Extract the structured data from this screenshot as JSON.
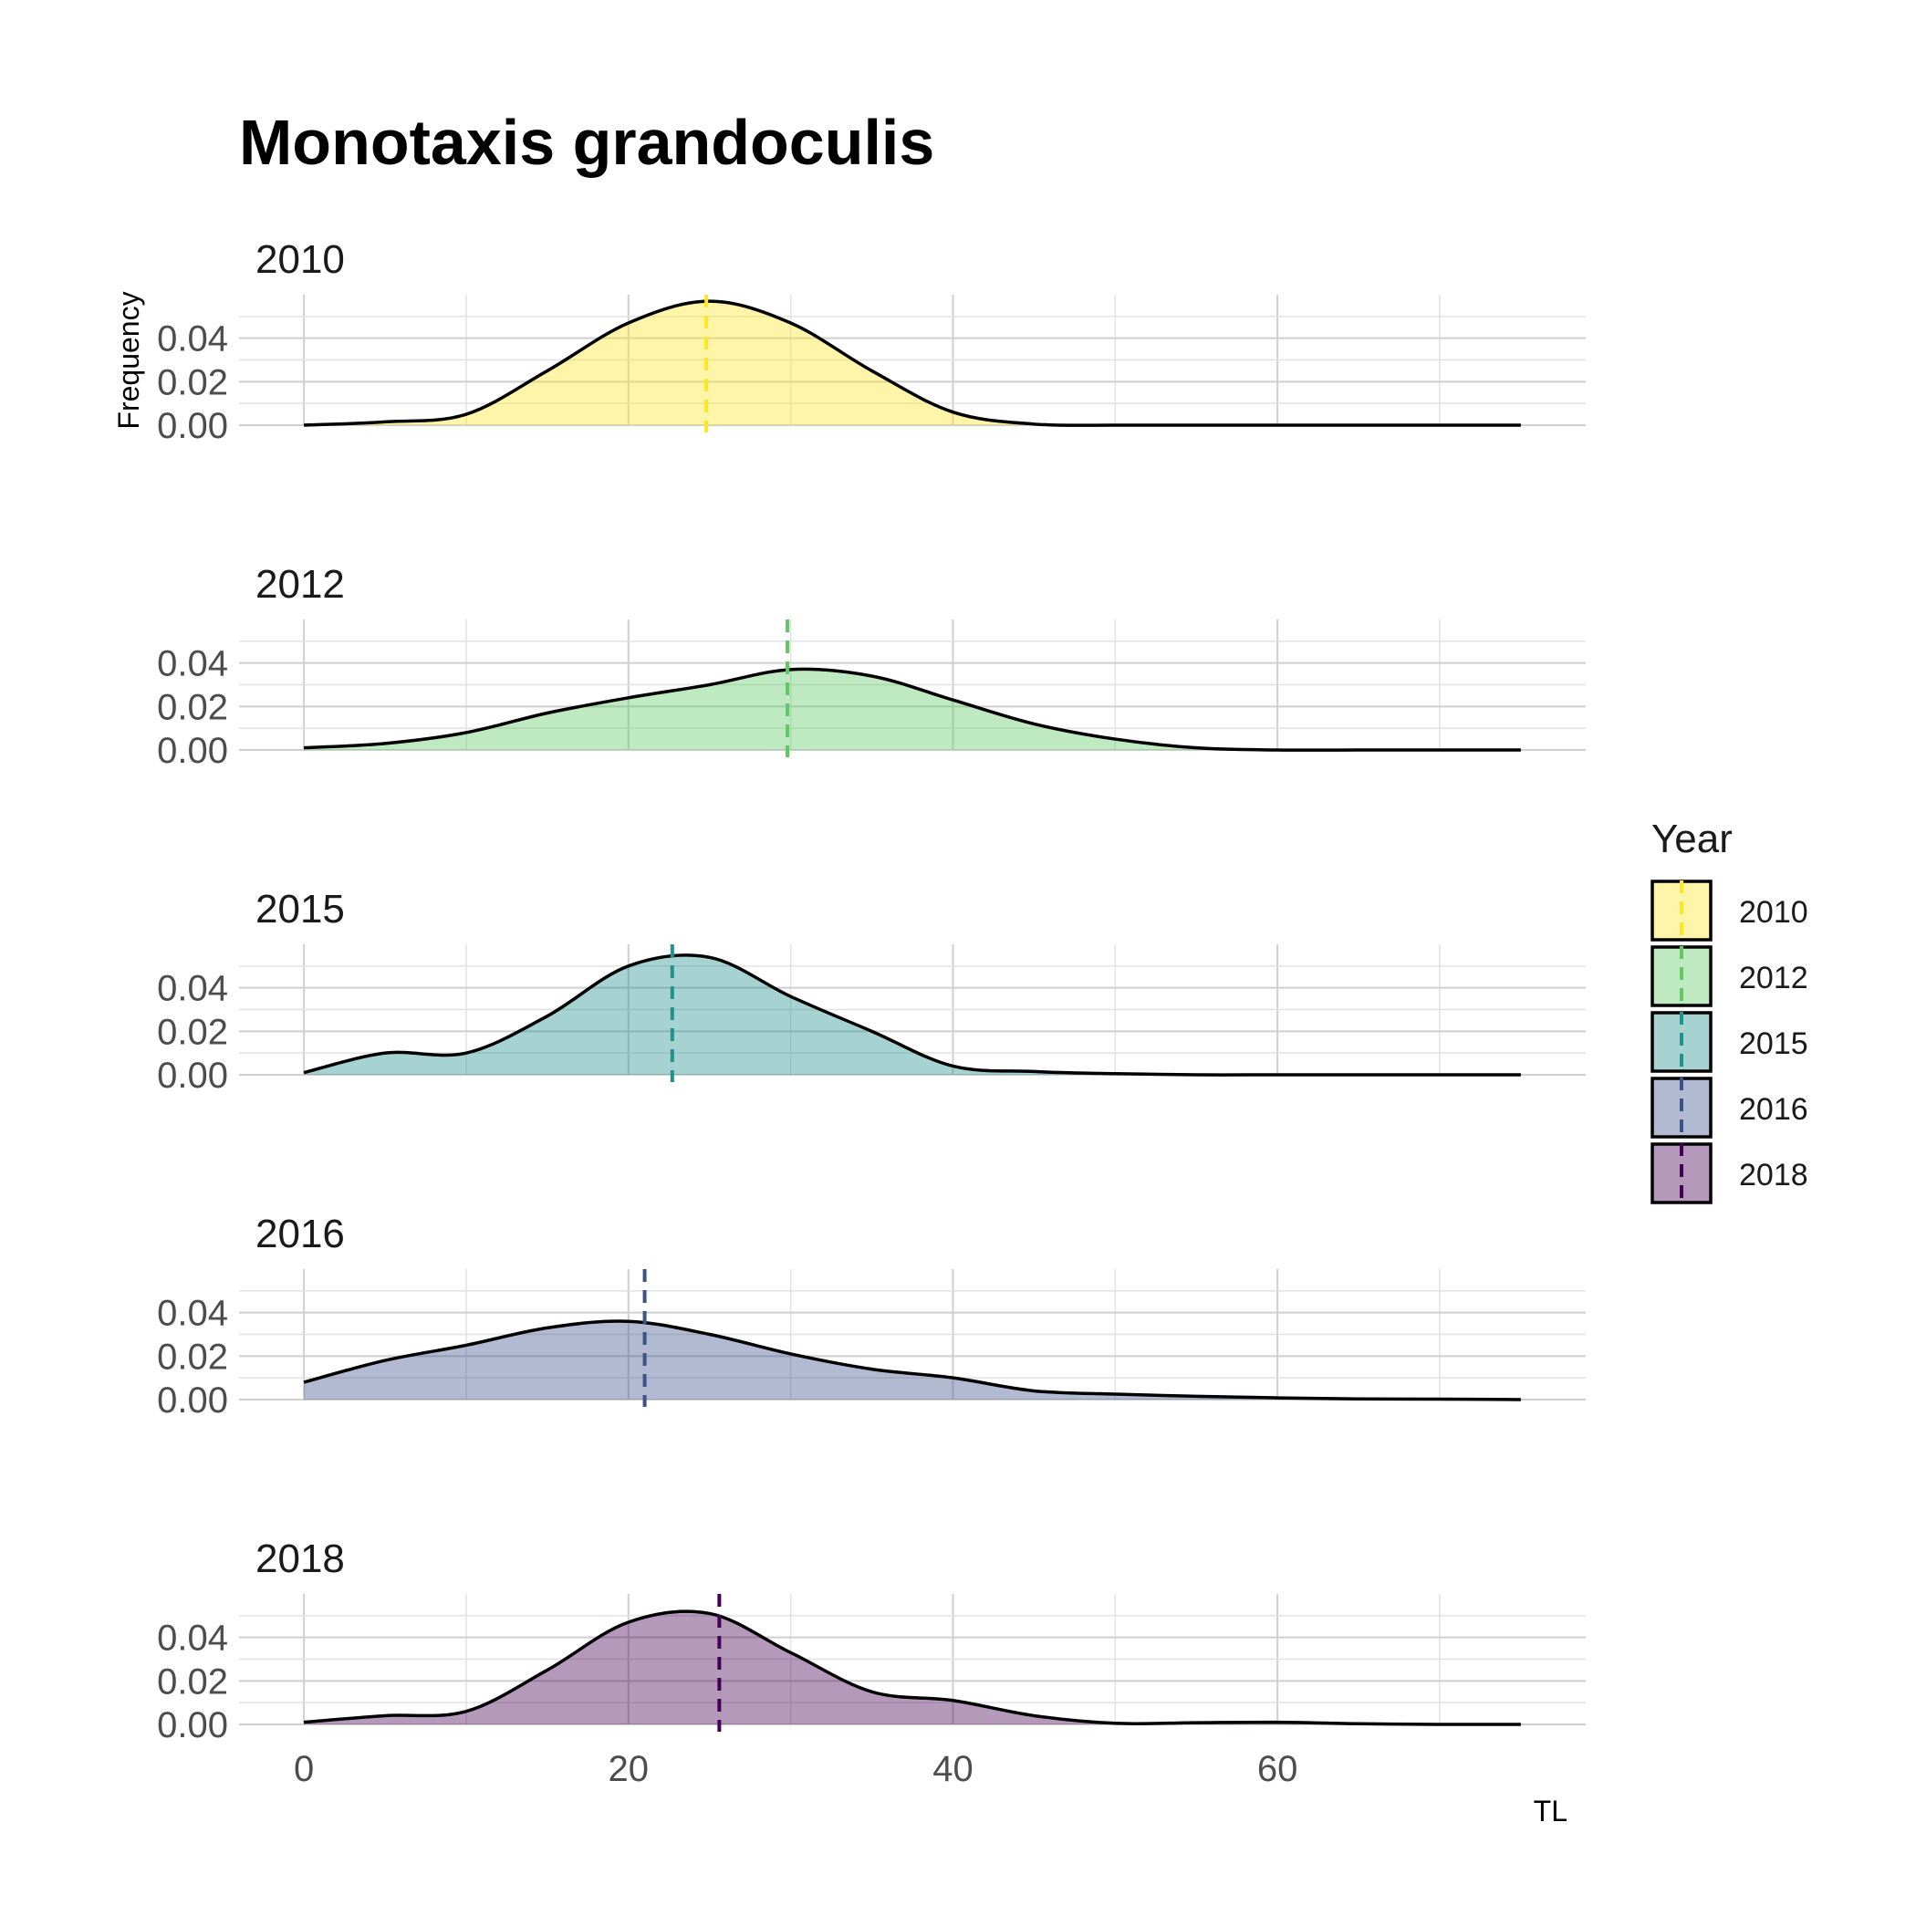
{
  "chart_data": {
    "type": "area",
    "title": "Monotaxis grandoculis",
    "xlabel": "TL",
    "ylabel": "Frequency",
    "xlim": [
      -4,
      79
    ],
    "ylim": [
      0,
      0.06
    ],
    "x_ticks": [
      0,
      20,
      40,
      60
    ],
    "y_ticks": [
      0.0,
      0.02,
      0.04
    ],
    "y_tick_labels": [
      "0.00",
      "0.02",
      "0.04"
    ],
    "grid": true,
    "legend": {
      "title": "Year",
      "position": "right"
    },
    "x": [
      0,
      5,
      10,
      15,
      20,
      25,
      30,
      35,
      40,
      45,
      50,
      55,
      60,
      65,
      70,
      75
    ],
    "series": [
      {
        "name": "2010",
        "color": "#fde725",
        "mean": 24.8,
        "values": [
          0.0,
          0.0015,
          0.005,
          0.025,
          0.047,
          0.057,
          0.047,
          0.025,
          0.006,
          0.0005,
          0.0,
          0.0,
          0.0,
          0.0,
          0.0,
          0.0
        ]
      },
      {
        "name": "2012",
        "color": "#5ec962",
        "mean": 29.8,
        "values": [
          0.001,
          0.003,
          0.008,
          0.017,
          0.024,
          0.03,
          0.037,
          0.034,
          0.023,
          0.012,
          0.005,
          0.001,
          0.0,
          0.0,
          0.0,
          0.0
        ]
      },
      {
        "name": "2015",
        "color": "#21918c",
        "mean": 22.7,
        "values": [
          0.001,
          0.01,
          0.01,
          0.027,
          0.05,
          0.054,
          0.036,
          0.02,
          0.004,
          0.0015,
          0.0005,
          0.0,
          0.0,
          0.0,
          0.0,
          0.0
        ]
      },
      {
        "name": "2016",
        "color": "#3b528b",
        "mean": 21.0,
        "values": [
          0.008,
          0.018,
          0.025,
          0.033,
          0.036,
          0.03,
          0.021,
          0.014,
          0.01,
          0.004,
          0.0025,
          0.0015,
          0.0008,
          0.0003,
          0.0002,
          0.0
        ]
      },
      {
        "name": "2018",
        "color": "#440154",
        "mean": 25.6,
        "values": [
          0.001,
          0.004,
          0.006,
          0.025,
          0.047,
          0.051,
          0.033,
          0.015,
          0.011,
          0.004,
          0.0005,
          0.0008,
          0.001,
          0.0003,
          0.0,
          0.0
        ]
      }
    ]
  }
}
